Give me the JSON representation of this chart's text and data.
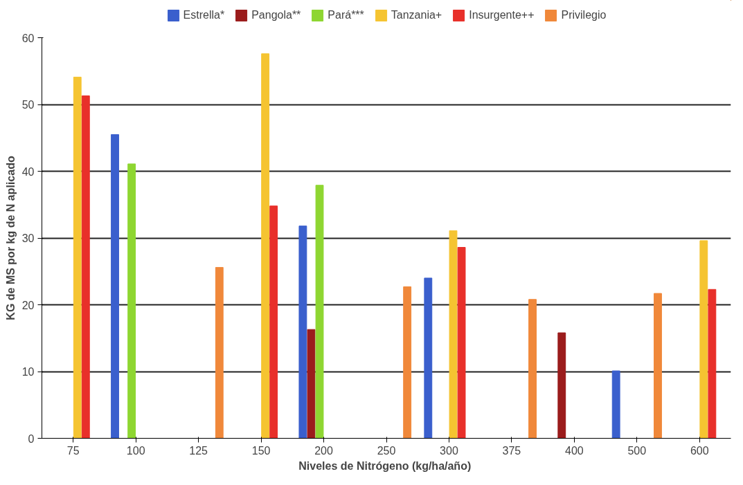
{
  "chart_data": {
    "type": "bar",
    "xlabel": "Niveles de Nitrógeno  (kg/ha/año)",
    "ylabel": "KG de MS por kg de N aplicado",
    "categories": [
      "75",
      "100",
      "125",
      "150",
      "200",
      "250",
      "300",
      "375",
      "400",
      "500",
      "600"
    ],
    "series": [
      {
        "name": "Estrella*",
        "color": "#3a5fcd",
        "values": [
          null,
          45.5,
          null,
          null,
          31.8,
          null,
          24,
          null,
          null,
          10.1,
          null
        ]
      },
      {
        "name": "Pangola**",
        "color": "#9b1c1c",
        "values": [
          null,
          null,
          null,
          null,
          16.3,
          null,
          null,
          null,
          15.8,
          null,
          null
        ]
      },
      {
        "name": "Pará***",
        "color": "#8ed631",
        "values": [
          null,
          41.1,
          null,
          null,
          37.9,
          null,
          null,
          null,
          null,
          null,
          null
        ]
      },
      {
        "name": "Tanzania+",
        "color": "#f5c431",
        "values": [
          54.1,
          null,
          null,
          57.6,
          null,
          null,
          31.1,
          null,
          null,
          null,
          29.6
        ]
      },
      {
        "name": "Insurgente++",
        "color": "#e8302a",
        "values": [
          51.3,
          null,
          null,
          34.8,
          null,
          null,
          28.6,
          null,
          null,
          null,
          22.3
        ]
      },
      {
        "name": "Privilegio",
        "color": "#f0883a",
        "values": [
          null,
          null,
          25.6,
          null,
          null,
          22.7,
          null,
          20.8,
          null,
          21.7,
          null
        ]
      }
    ],
    "ylim": [
      0,
      60
    ],
    "yticks": [
      0,
      10,
      20,
      30,
      40,
      50,
      60
    ],
    "grid": "y",
    "legend": "top"
  }
}
